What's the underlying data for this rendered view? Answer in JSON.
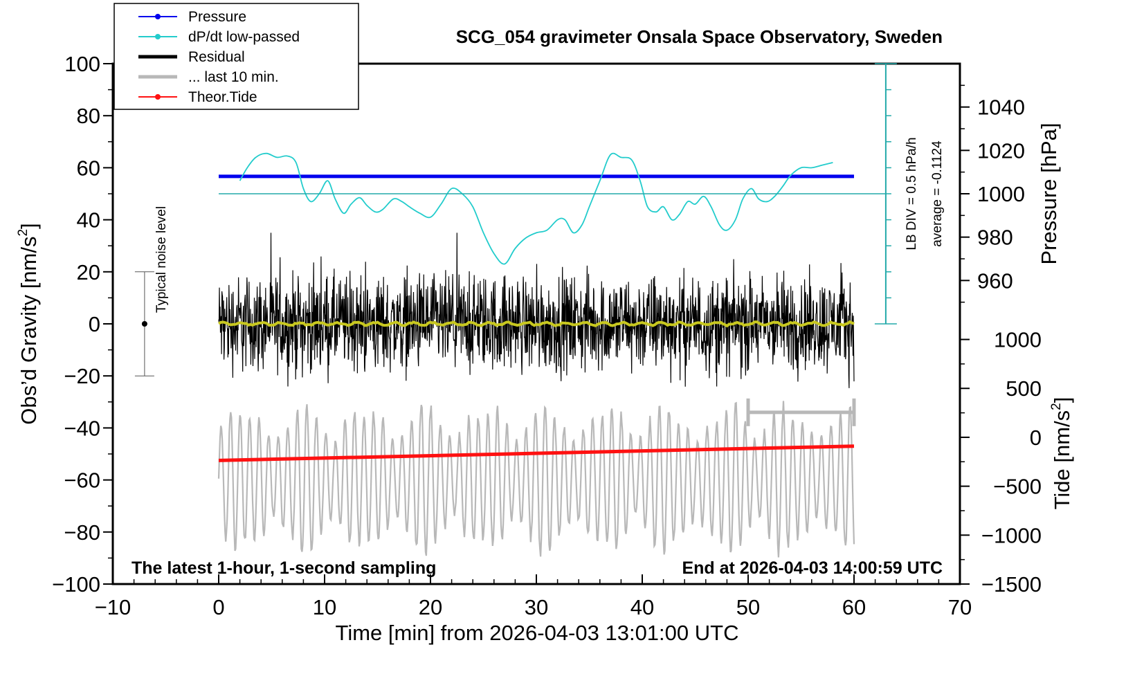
{
  "chart_data": {
    "type": "line",
    "title": "SCG_054 gravimeter Onsala Space Observatory, Sweden",
    "xlabel": "Time [min] from 2026-04-03 13:01:00 UTC",
    "ylabel_left": "Obs’d Gravity [nm/s",
    "ylabel_left_sup": "2",
    "ylabel_left_end": "]",
    "ylabel_right_top": "Pressure [hPa]",
    "ylabel_right_bottom": "Tide [nm/s",
    "ylabel_right_bottom_sup": "2",
    "ylabel_right_bottom_end": "]",
    "xlim": [
      -10,
      70
    ],
    "ylim_left": [
      -100,
      100
    ],
    "x_ticks": [
      -10,
      0,
      10,
      20,
      30,
      40,
      50,
      60,
      70
    ],
    "x_tick_labels": [
      "−10",
      "0",
      "10",
      "20",
      "30",
      "40",
      "50",
      "60",
      "70"
    ],
    "y_left_ticks": [
      -100,
      -80,
      -60,
      -40,
      -20,
      0,
      20,
      40,
      60,
      80,
      100
    ],
    "y_left_tick_labels": [
      "−100",
      "−80",
      "−60",
      "−40",
      "−20",
      "0",
      "20",
      "40",
      "60",
      "80",
      "100"
    ],
    "pressure_ticks": [
      960,
      980,
      1000,
      1020,
      1040
    ],
    "pressure_tick_labels": [
      "960",
      "980",
      "1000",
      "1020",
      "1040"
    ],
    "pressure_axis": {
      "value_at_y0": 940,
      "value_at_y100": 1060
    },
    "tide_ticks": [
      -1500,
      -1000,
      -500,
      0,
      500,
      1000
    ],
    "tide_tick_labels": [
      "−1500",
      "−1000",
      "−500",
      "0",
      "500",
      "1000"
    ],
    "tide_axis": {
      "value_at_ym100": -1500,
      "value_at_ym6": 1000
    },
    "legend": {
      "location": "top-left",
      "entries": [
        {
          "label": "Pressure",
          "color": "#0000ee"
        },
        {
          "label": "dP/dt low-passed",
          "color": "#22cccc"
        },
        {
          "label": "Residual",
          "color": "#000000"
        },
        {
          "label": "... last 10 min.",
          "color": "#b8b8b8"
        },
        {
          "label": "Theor.Tide",
          "color": "#ff1111"
        }
      ]
    },
    "series": [
      {
        "name": "Pressure",
        "color": "#0000ee",
        "x": [
          0,
          60
        ],
        "pressure_hPa": [
          1008,
          1008
        ]
      },
      {
        "name": "dP/dt low-passed",
        "color": "#22cccc",
        "x": [
          2,
          2.7,
          3.5,
          4.5,
          5.5,
          6.5,
          7.3,
          8,
          8.7,
          9.5,
          10.3,
          11,
          11.8,
          12.5,
          13.3,
          14,
          14.8,
          15.5,
          16.5,
          17.3,
          18,
          19,
          20,
          21,
          22,
          23,
          24,
          25,
          26,
          27,
          28,
          29,
          30,
          31,
          32,
          32.7,
          33.5,
          34.3,
          35,
          36,
          37,
          38,
          39,
          39.8,
          40.5,
          41.3,
          42,
          42.8,
          43.5,
          44.3,
          45,
          45.8,
          46.5,
          47.3,
          48,
          48.8,
          49.5,
          50.3,
          51,
          51.8,
          52.5,
          53.3,
          54,
          55,
          56,
          57,
          58
        ],
        "y": [
          55,
          60,
          64,
          65.5,
          64,
          64.5,
          62,
          52,
          47,
          50,
          55,
          48,
          42.5,
          46,
          48.5,
          45.5,
          43,
          44,
          48,
          47,
          45,
          42.5,
          41,
          46,
          52,
          50,
          45,
          35,
          27,
          23,
          29,
          33,
          35,
          36,
          40,
          40,
          35,
          38,
          45,
          55,
          65,
          64,
          63,
          55,
          45,
          43,
          45,
          40,
          42,
          47,
          46,
          49,
          45,
          38,
          36,
          40,
          48,
          52,
          48,
          47,
          49,
          53,
          57,
          60,
          60,
          61,
          62
        ]
      },
      {
        "name": "Residual",
        "color": "#000000",
        "x_range": [
          0,
          60
        ],
        "summary": "high-frequency noise around 0 nm/s²",
        "typical_range": [
          -20,
          20
        ],
        "extreme_range": [
          -31,
          35
        ]
      },
      {
        "name": "Residual smoothed",
        "color": "#c8c820",
        "x_range": [
          0,
          60
        ],
        "approx_value": 0
      },
      {
        "name": "... last 10 min.",
        "color": "#b8b8b8",
        "x_range": [
          0,
          60
        ],
        "summary": "oscillation centered near -60 nm/s² on the left-axis scale",
        "range": [
          -92,
          -27
        ]
      },
      {
        "name": "Theor.Tide",
        "color": "#ff1111",
        "x": [
          0,
          60
        ],
        "y_left_axis": [
          -52.5,
          -47
        ]
      }
    ],
    "annotations": {
      "noise_label": "Typical noise level",
      "noise_bar": {
        "x": -7,
        "center": 0,
        "low": -20,
        "high": 20
      },
      "lb_div": "LB DIV = 0.5 hPa/h",
      "average": "average = -0.1124",
      "dpdt_zero_line_y": 50,
      "cyan_scale_bar": {
        "x": 63,
        "y_range": [
          0,
          100
        ],
        "divisions": 10
      },
      "last10_bar": {
        "x_range": [
          50,
          60
        ],
        "y": -34
      },
      "bottom_left": "The latest 1-hour, 1-second sampling",
      "bottom_right": "End at 2026-04-03 14:00:59 UTC"
    }
  }
}
